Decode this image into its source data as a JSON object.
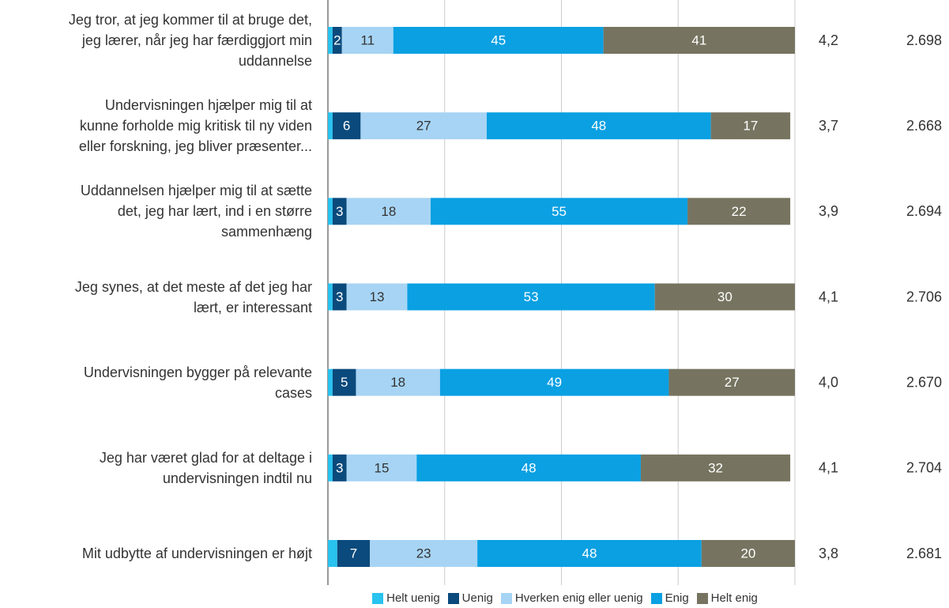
{
  "chart_data": {
    "type": "stacked-bar-horizontal",
    "categories": [
      "Jeg tror, at jeg kommer til at bruge det,\njeg lærer, når jeg har færdiggjort min\nuddannelse",
      "Undervisningen hjælper mig til at\nkunne forholde mig kritisk til ny viden\neller forskning, jeg bliver præsenter...",
      "Uddannelsen hjælper mig til at sætte\ndet, jeg har lært, ind i en større\nsammenhæng",
      "Jeg synes, at det meste af det jeg har\nlært, er interessant",
      "Undervisningen bygger på relevante\ncases",
      "Jeg har været glad for at deltage i\nundervisningen indtil nu",
      "Mit udbytte af undervisningen er højt"
    ],
    "series": [
      {
        "name": "Helt uenig",
        "color": "#29c3ef",
        "show_labels": false,
        "values": [
          1,
          1,
          1,
          1,
          1,
          1,
          2
        ]
      },
      {
        "name": "Uenig",
        "color": "#0b4a7c",
        "label_color": "#ffffff",
        "values": [
          2,
          6,
          3,
          3,
          5,
          3,
          7
        ]
      },
      {
        "name": "Hverken enig eller uenig",
        "color": "#a7d4f4",
        "label_color": "#333333",
        "values": [
          11,
          27,
          18,
          13,
          18,
          15,
          23
        ]
      },
      {
        "name": "Enig",
        "color": "#0aa0e2",
        "label_color": "#ffffff",
        "values": [
          45,
          48,
          55,
          53,
          49,
          48,
          48
        ]
      },
      {
        "name": "Helt enig",
        "color": "#767460",
        "label_color": "#ffffff",
        "values": [
          41,
          17,
          22,
          30,
          27,
          32,
          20
        ]
      }
    ],
    "means": [
      "4,2",
      "3,7",
      "3,9",
      "4,1",
      "4,0",
      "4,1",
      "3,8"
    ],
    "counts": [
      "2.698",
      "2.668",
      "2.694",
      "2.706",
      "2.670",
      "2.704",
      "2.681"
    ],
    "xlim": [
      0,
      100
    ],
    "gridlines": [
      0,
      25,
      50,
      75,
      100
    ],
    "legend": "bottom"
  }
}
